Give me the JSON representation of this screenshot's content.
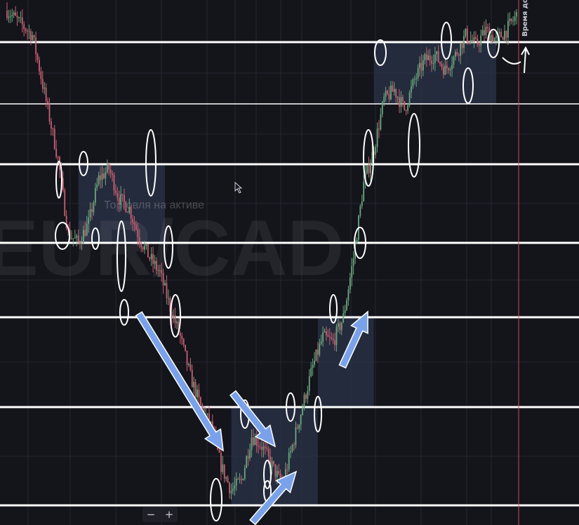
{
  "watermark": {
    "symbol": "EUR/CAD",
    "status": "Торговля на активе"
  },
  "timer_label": "Время до по",
  "zoom": {
    "minus": "−",
    "plus": "+"
  },
  "colors": {
    "background": "#14141b",
    "grid": "#262630",
    "level_line": "#ffffff",
    "candle_up": "#6aa87e",
    "candle_down": "#c86072",
    "zone_fill": "#2a3348",
    "annotation_arrow": "#7aa2ea",
    "current_time_line": "#c84c4c"
  },
  "chart_data": {
    "type": "candlestick",
    "symbol": "EUR/CAD",
    "grid": true,
    "axes_labels_visible": false,
    "horizontal_levels": [
      1,
      2,
      3,
      4,
      5,
      6,
      7
    ],
    "price_path": [
      [
        0.0,
        1.0
      ],
      [
        0.03,
        0.97
      ],
      [
        0.05,
        0.95
      ],
      [
        0.07,
        0.85
      ],
      [
        0.1,
        0.7
      ],
      [
        0.12,
        0.55
      ],
      [
        0.14,
        0.53
      ],
      [
        0.16,
        0.57
      ],
      [
        0.18,
        0.66
      ],
      [
        0.2,
        0.68
      ],
      [
        0.22,
        0.62
      ],
      [
        0.24,
        0.6
      ],
      [
        0.26,
        0.54
      ],
      [
        0.28,
        0.5
      ],
      [
        0.3,
        0.47
      ],
      [
        0.32,
        0.4
      ],
      [
        0.34,
        0.34
      ],
      [
        0.36,
        0.26
      ],
      [
        0.38,
        0.2
      ],
      [
        0.4,
        0.16
      ],
      [
        0.42,
        0.08
      ],
      [
        0.44,
        0.03
      ],
      [
        0.46,
        0.05
      ],
      [
        0.48,
        0.14
      ],
      [
        0.5,
        0.12
      ],
      [
        0.52,
        0.08
      ],
      [
        0.54,
        0.04
      ],
      [
        0.56,
        0.12
      ],
      [
        0.58,
        0.2
      ],
      [
        0.6,
        0.28
      ],
      [
        0.62,
        0.34
      ],
      [
        0.64,
        0.33
      ],
      [
        0.66,
        0.38
      ],
      [
        0.68,
        0.5
      ],
      [
        0.7,
        0.65
      ],
      [
        0.72,
        0.72
      ],
      [
        0.74,
        0.82
      ],
      [
        0.76,
        0.84
      ],
      [
        0.78,
        0.8
      ],
      [
        0.8,
        0.86
      ],
      [
        0.82,
        0.9
      ],
      [
        0.84,
        0.91
      ],
      [
        0.86,
        0.88
      ],
      [
        0.88,
        0.91
      ],
      [
        0.9,
        0.95
      ],
      [
        0.92,
        0.93
      ],
      [
        0.94,
        0.96
      ],
      [
        0.96,
        0.94
      ],
      [
        0.98,
        0.96
      ],
      [
        1.0,
        0.99
      ]
    ],
    "zones": [
      {
        "from": 0.14,
        "to": 0.31,
        "low_level": 3,
        "high_level": 4
      },
      {
        "from": 0.44,
        "to": 0.61,
        "low_level": 7,
        "high_level": 6
      },
      {
        "from": 0.61,
        "to": 0.72,
        "low_level": 6,
        "high_level": 5
      },
      {
        "from": 0.72,
        "to": 0.96,
        "low_level": 2,
        "high_level": 1
      }
    ],
    "annotations": [
      {
        "kind": "arrow",
        "direction": "down"
      },
      {
        "kind": "arrow",
        "direction": "down"
      },
      {
        "kind": "arrow",
        "direction": "down"
      },
      {
        "kind": "arrow",
        "direction": "up"
      },
      {
        "kind": "arrow",
        "direction": "up"
      }
    ]
  }
}
